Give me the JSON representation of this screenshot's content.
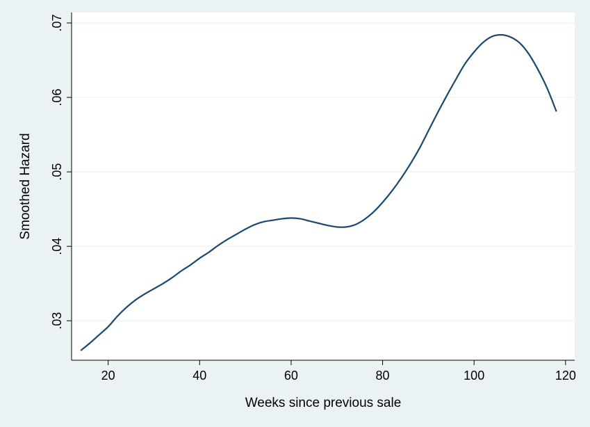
{
  "colors": {
    "background": "#eaf2f3",
    "plot_area": "#ffffff",
    "grid": "#eaf2f3",
    "axis": "#000000",
    "line": "#1a476f"
  },
  "chart_data": {
    "type": "line",
    "title": "",
    "xlabel": "Weeks since previous sale",
    "ylabel": "Smoothed Hazard",
    "xlim": [
      12,
      122
    ],
    "ylim": [
      0.0247,
      0.0714
    ],
    "xticks": [
      20,
      40,
      60,
      80,
      100,
      120
    ],
    "xtick_labels": [
      "20",
      "40",
      "60",
      "80",
      "100",
      "120"
    ],
    "yticks": [
      0.03,
      0.04,
      0.05,
      0.06,
      0.07
    ],
    "ytick_labels": [
      ".03",
      ".04",
      ".05",
      ".06",
      ".07"
    ],
    "grid": "horizontal",
    "legend": "none",
    "series": [
      {
        "x": [
          14,
          16,
          18,
          20,
          22,
          24,
          26,
          28,
          30,
          32,
          34,
          36,
          38,
          40,
          42,
          44,
          46,
          48,
          50,
          52,
          54,
          56,
          58,
          60,
          62,
          64,
          66,
          68,
          70,
          72,
          74,
          76,
          78,
          80,
          82,
          84,
          86,
          88,
          90,
          92,
          94,
          96,
          98,
          100,
          102,
          104,
          106,
          108,
          110,
          112,
          114,
          116,
          118
        ],
        "y": [
          0.026,
          0.027,
          0.0281,
          0.0292,
          0.0306,
          0.0318,
          0.0328,
          0.0336,
          0.0343,
          0.035,
          0.0358,
          0.0367,
          0.0375,
          0.0384,
          0.0392,
          0.0401,
          0.0409,
          0.0416,
          0.0423,
          0.0429,
          0.0433,
          0.0435,
          0.0437,
          0.0438,
          0.0437,
          0.0434,
          0.0431,
          0.0428,
          0.0426,
          0.0426,
          0.0429,
          0.0436,
          0.0446,
          0.0459,
          0.0474,
          0.0491,
          0.051,
          0.0531,
          0.0555,
          0.0579,
          0.0602,
          0.0624,
          0.0645,
          0.0661,
          0.0674,
          0.0682,
          0.0684,
          0.0681,
          0.0673,
          0.0658,
          0.0637,
          0.0612,
          0.0581
        ]
      }
    ]
  }
}
